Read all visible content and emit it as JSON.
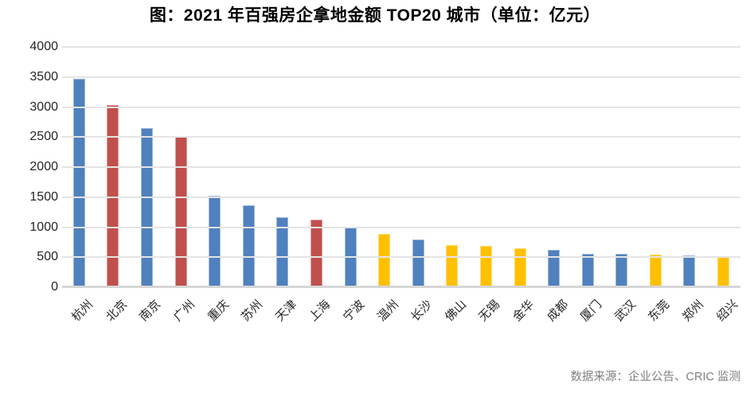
{
  "title": "图：2021 年百强房企拿地金额 TOP20 城市（单位：亿元）",
  "source_note": "数据来源：企业公告、CRIC 监测",
  "palette": {
    "blue": "#4F81BD",
    "red": "#C0504D",
    "yellow": "#FFC000",
    "gridline": "#E4E4E4",
    "axis_line": "#D6D6D6",
    "title_color": "#000000",
    "tick_label_color": "#262626",
    "source_color": "#7F7F7F"
  },
  "chart_data": {
    "type": "bar",
    "title": "图：2021 年百强房企拿地金额 TOP20 城市（单位：亿元）",
    "unit": "亿元",
    "categories": [
      "杭州",
      "北京",
      "南京",
      "广州",
      "重庆",
      "苏州",
      "天津",
      "上海",
      "宁波",
      "温州",
      "长沙",
      "佛山",
      "无锡",
      "金华",
      "成都",
      "厦门",
      "武汉",
      "东莞",
      "郑州",
      "绍兴"
    ],
    "values": [
      3466,
      3035,
      2650,
      2500,
      1525,
      1370,
      1170,
      1125,
      1010,
      885,
      790,
      700,
      690,
      650,
      625,
      560,
      558,
      537,
      535,
      515
    ],
    "bar_color_keys": [
      "blue",
      "red",
      "blue",
      "red",
      "blue",
      "blue",
      "blue",
      "red",
      "blue",
      "yellow",
      "blue",
      "yellow",
      "yellow",
      "yellow",
      "blue",
      "blue",
      "blue",
      "yellow",
      "blue",
      "yellow"
    ],
    "xlabel": "",
    "ylabel": "",
    "ylim": [
      0,
      4000
    ],
    "ytick_step": 500,
    "yticks": [
      0,
      500,
      1000,
      1500,
      2000,
      2500,
      3000,
      3500,
      4000
    ],
    "grid": "horizontal",
    "legend": "none"
  }
}
